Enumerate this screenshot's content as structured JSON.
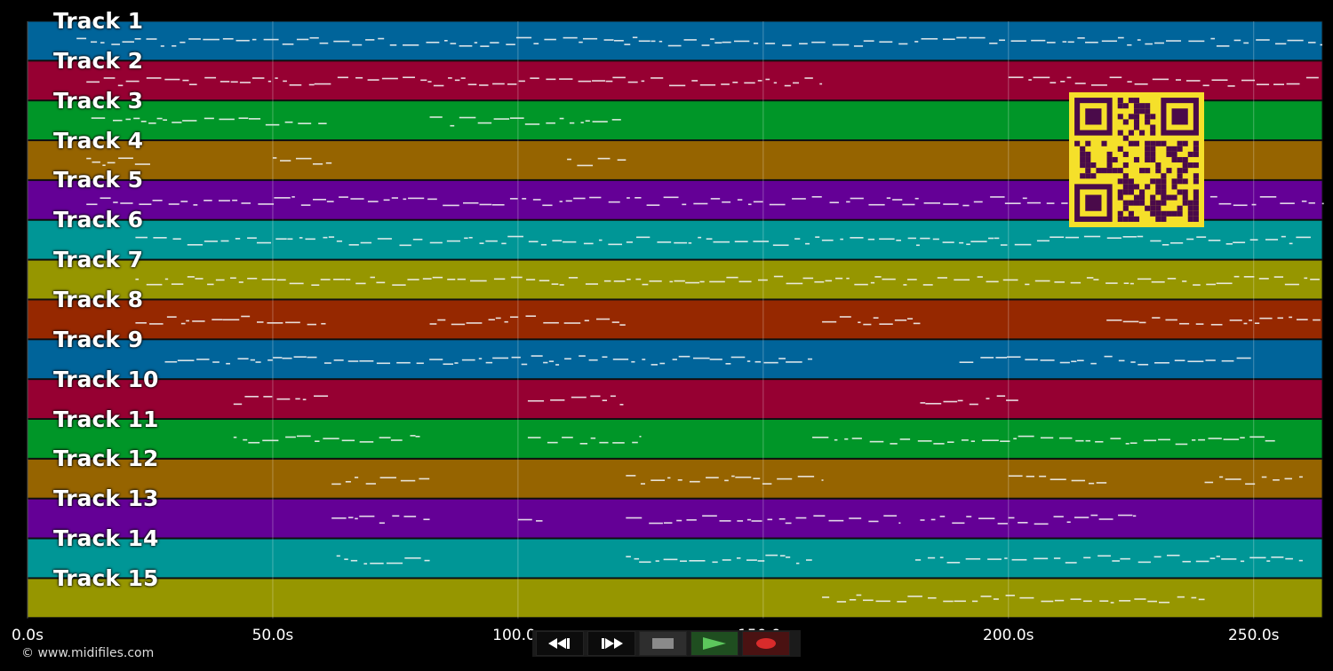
{
  "tracks": [
    {
      "label": "Track 1",
      "color": "#00649a"
    },
    {
      "label": "Track 2",
      "color": "#960032"
    },
    {
      "label": "Track 3",
      "color": "#009628"
    },
    {
      "label": "Track 4",
      "color": "#966400"
    },
    {
      "label": "Track 5",
      "color": "#640096"
    },
    {
      "label": "Track 6",
      "color": "#009696"
    },
    {
      "label": "Track 7",
      "color": "#969600"
    },
    {
      "label": "Track 8",
      "color": "#962800"
    },
    {
      "label": "Track 9",
      "color": "#00649a"
    },
    {
      "label": "Track 10",
      "color": "#960032"
    },
    {
      "label": "Track 11",
      "color": "#009628"
    },
    {
      "label": "Track 12",
      "color": "#966400"
    },
    {
      "label": "Track 13",
      "color": "#640096"
    },
    {
      "label": "Track 14",
      "color": "#009696"
    },
    {
      "label": "Track 15",
      "color": "#969600"
    }
  ],
  "timeline": {
    "ticks": [
      "0.0s",
      "50.0s",
      "100.0s",
      "150.0s",
      "200.0s",
      "250.0s"
    ],
    "tick_seconds": [
      0,
      50,
      100,
      150,
      200,
      250
    ],
    "max_seconds": 264
  },
  "copyright": "© www.midifiles.com",
  "transport": {
    "rewind_icon": "rewind-icon",
    "forward_icon": "fast-forward-icon",
    "stop_icon": "stop-icon",
    "play_icon": "play-icon",
    "record_icon": "record-icon"
  },
  "qr_color": "#f5e02a",
  "qr_dark": "#4a0a4a"
}
